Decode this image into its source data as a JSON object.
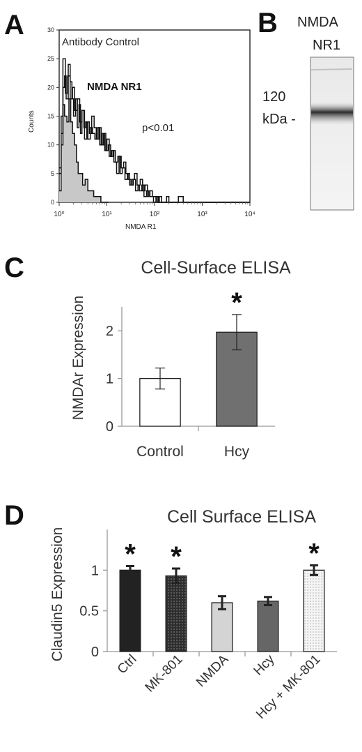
{
  "panel_labels": {
    "a": "A",
    "b": "B",
    "c": "C",
    "d": "D"
  },
  "chart_data": [
    {
      "panel": "A",
      "type": "line",
      "title": "Antibody Control",
      "annotation": "NMDA NR1",
      "pvalue": "p<0.01",
      "xlabel": "NMDA R1",
      "ylabel": "Counts",
      "xscale": "log",
      "xlim": [
        1,
        10000
      ],
      "ylim": [
        0,
        30
      ],
      "xticks": [
        "10⁰",
        "10¹",
        "10²",
        "10³",
        "10⁴"
      ],
      "yticks": [
        0,
        5,
        10,
        15,
        20,
        25,
        30
      ],
      "series": [
        {
          "fill": "#c8c8c8",
          "x": [
            1.0,
            1.1,
            1.2,
            1.3,
            1.45,
            1.6,
            1.75,
            1.9,
            2.1,
            2.3,
            2.5,
            2.8,
            3.1,
            3.5,
            4.0,
            4.6,
            5.3,
            6.2,
            7.5,
            9.0,
            11
          ],
          "y": [
            2,
            10,
            17,
            15,
            14,
            18,
            14,
            12,
            10,
            7,
            5,
            5,
            3,
            4,
            2,
            2,
            1,
            1,
            0,
            0,
            0
          ]
        },
        {
          "x": [
            1.0,
            1.1,
            1.2,
            1.3,
            1.4,
            1.55,
            1.7,
            1.85,
            2.0,
            2.2,
            2.4,
            2.6,
            2.8,
            3.0,
            3.3,
            3.6,
            4.0,
            4.5,
            5.0,
            5.6,
            6.3,
            7.1,
            8.0,
            9.0,
            10,
            11.2,
            12.6,
            14,
            16,
            18,
            20,
            22.5,
            25,
            28,
            32,
            36,
            40,
            45,
            50,
            56,
            63,
            71,
            80,
            90,
            100,
            113,
            126,
            141,
            158,
            178,
            200,
            251,
            316,
            400,
            501,
            1000,
            10000
          ],
          "y": [
            5,
            15,
            20,
            22,
            18,
            24,
            21,
            18,
            15,
            18,
            13,
            17,
            12,
            16,
            13,
            14,
            11,
            13,
            12,
            11,
            13,
            10,
            12,
            9,
            11,
            8,
            9,
            7,
            5,
            8,
            6,
            7,
            5,
            4,
            3,
            4,
            2,
            3,
            4,
            2,
            3,
            1,
            2,
            1,
            1,
            0,
            1,
            0,
            0,
            1,
            0,
            0,
            1,
            0,
            0,
            0,
            0
          ]
        },
        {
          "x": [
            1.0,
            1.1,
            1.2,
            1.35,
            1.5,
            1.7,
            1.9,
            2.1,
            2.4,
            2.7,
            3.0,
            3.4,
            3.8,
            4.3,
            4.8,
            5.4,
            6.0,
            6.8,
            7.6,
            8.5,
            9.5,
            10.7,
            12,
            13.5,
            15,
            17,
            19,
            21,
            24,
            27,
            30,
            34,
            38,
            43,
            48,
            54,
            60,
            68,
            76,
            85,
            95,
            107,
            120,
            200,
            300,
            1000,
            10000
          ],
          "y": [
            6,
            12,
            25,
            19,
            22,
            18,
            20,
            16,
            18,
            14,
            16,
            11,
            14,
            12,
            15,
            13,
            11,
            13,
            10,
            12,
            9,
            10,
            8,
            9,
            7,
            8,
            5,
            6,
            4,
            5,
            3,
            4,
            5,
            3,
            2,
            3,
            1,
            2,
            1,
            1,
            0,
            1,
            0,
            0,
            0,
            0,
            0
          ]
        }
      ]
    },
    {
      "panel": "C",
      "type": "bar",
      "title": "Cell-Surface ELISA",
      "ylabel": "NMDAr Expression",
      "xlabel": "",
      "categories": [
        "Control",
        "Hcy"
      ],
      "values": [
        1.0,
        1.97
      ],
      "errors": [
        0.22,
        0.37
      ],
      "colors": [
        "#ffffff",
        "#707070"
      ],
      "significance": [
        "",
        "*"
      ],
      "ylim": [
        0,
        2.5
      ],
      "yticks": [
        0,
        1,
        2
      ]
    },
    {
      "panel": "D",
      "type": "bar",
      "title": "Cell Surface ELISA",
      "ylabel": "Claudin5 Expression",
      "xlabel": "",
      "categories": [
        "Ctrl",
        "MK-801",
        "NMDA",
        "Hcy",
        "Hcy + MK-801"
      ],
      "values": [
        1.0,
        0.93,
        0.6,
        0.62,
        1.0
      ],
      "errors": [
        0.05,
        0.09,
        0.08,
        0.05,
        0.06
      ],
      "colors": [
        "#222222",
        "#333333",
        "#d4d4d4",
        "#666666",
        "#f2f2f2"
      ],
      "patterns": [
        "none",
        "dots-light",
        "none",
        "none",
        "dots-dark"
      ],
      "significance": [
        "*",
        "*",
        "",
        "",
        "*"
      ],
      "ylim": [
        0,
        1.5
      ],
      "yticks": [
        0,
        0.5,
        1
      ]
    }
  ],
  "blot": {
    "lane_label_line1": "NMDA",
    "lane_label_line2": "NR1",
    "marker_line1": "120",
    "marker_line2": "kDa -"
  }
}
